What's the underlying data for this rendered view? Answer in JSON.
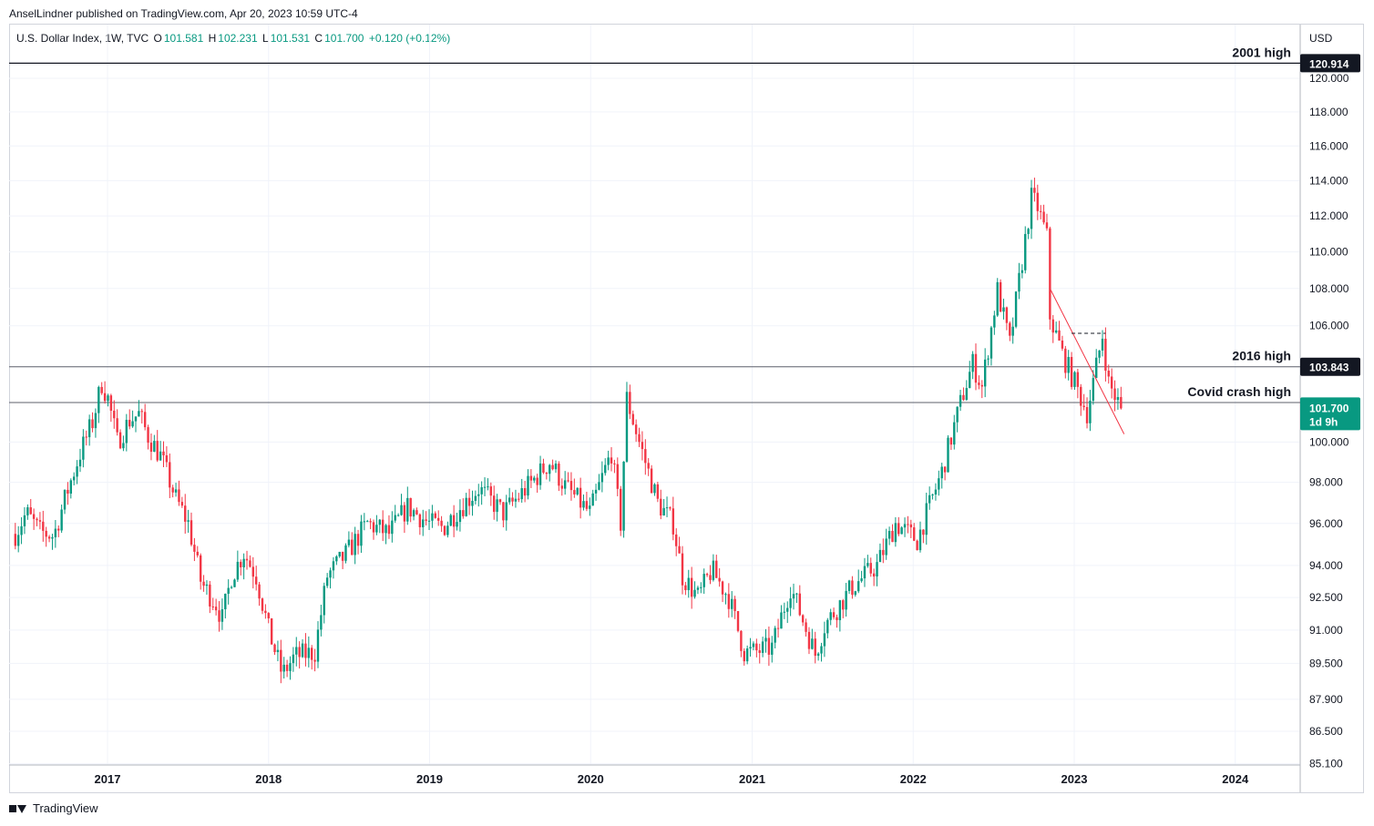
{
  "header": {
    "published": "AnselLindner published on TradingView.com, Apr 20, 2023 10:59 UTC-4"
  },
  "legend": {
    "symbol": "U.S. Dollar Index, 1W, TVC",
    "o_label": "O",
    "o_value": "101.581",
    "h_label": "H",
    "h_value": "102.231",
    "l_label": "L",
    "l_value": "101.531",
    "c_label": "C",
    "c_value": "101.700",
    "change": "+0.120 (+0.12%)"
  },
  "footer": {
    "brand": "TradingView"
  },
  "colors": {
    "up": "#089981",
    "down": "#f23645",
    "trend": "#f23645"
  },
  "chart_data": {
    "type": "candlestick",
    "currency": "USD",
    "scale": "log",
    "y_ticks": [
      "120.000",
      "118.000",
      "116.000",
      "114.000",
      "112.000",
      "110.000",
      "108.000",
      "106.000",
      "100.000",
      "98.000",
      "96.000",
      "94.000",
      "92.500",
      "91.000",
      "89.500",
      "87.900",
      "86.500",
      "85.100"
    ],
    "y_tick_values": [
      120,
      118,
      116,
      114,
      112,
      110,
      108,
      106,
      100,
      98,
      96,
      94,
      92.5,
      91,
      89.5,
      87.9,
      86.5,
      85.1
    ],
    "x_ticks": [
      "2017",
      "2018",
      "2019",
      "2020",
      "2021",
      "2022",
      "2023",
      "2024"
    ],
    "hlines": [
      {
        "label": "2001 high",
        "value": 120.914,
        "tag": "120.914"
      },
      {
        "label": "2016 high",
        "value": 103.843,
        "tag": "103.843"
      },
      {
        "label": "Covid crash high",
        "value": 102.0
      }
    ],
    "last_price": {
      "value": 101.7,
      "tag": "101.700",
      "countdown": "1d 9h"
    },
    "trendline": {
      "from": [
        "2022-11-07",
        108.0
      ],
      "to": [
        "2023-04-24",
        100.4
      ]
    },
    "dashed_level": {
      "from": [
        "2022-12-26",
        105.6
      ],
      "to": [
        "2023-03-13",
        105.6
      ]
    },
    "series_weekly_close": {
      "start": "2016-06-06",
      "points": [
        [
          "2016-06-06",
          95.5
        ],
        [
          "2016-07-01",
          96.5
        ],
        [
          "2016-08-01",
          95.6
        ],
        [
          "2016-09-01",
          95.4
        ],
        [
          "2016-10-01",
          97.5
        ],
        [
          "2016-11-01",
          99.5
        ],
        [
          "2016-11-28",
          101.0
        ],
        [
          "2016-12-19",
          103.0
        ],
        [
          "2017-01-02",
          102.2
        ],
        [
          "2017-01-23",
          100.0
        ],
        [
          "2017-02-20",
          101.1
        ],
        [
          "2017-03-13",
          101.4
        ],
        [
          "2017-04-03",
          100.3
        ],
        [
          "2017-05-01",
          99.3
        ],
        [
          "2017-06-05",
          97.2
        ],
        [
          "2017-07-03",
          96.0
        ],
        [
          "2017-08-01",
          93.2
        ],
        [
          "2017-09-04",
          92.2
        ],
        [
          "2017-09-18",
          91.5
        ],
        [
          "2017-10-09",
          93.5
        ],
        [
          "2017-11-06",
          94.6
        ],
        [
          "2017-12-04",
          93.5
        ],
        [
          "2018-01-01",
          91.0
        ],
        [
          "2018-02-01",
          89.0
        ],
        [
          "2018-03-01",
          89.8
        ],
        [
          "2018-04-16",
          90.0
        ],
        [
          "2018-05-14",
          93.5
        ],
        [
          "2018-06-25",
          94.5
        ],
        [
          "2018-08-13",
          96.0
        ],
        [
          "2018-10-01",
          95.5
        ],
        [
          "2018-11-12",
          96.8
        ],
        [
          "2018-12-31",
          96.0
        ],
        [
          "2019-02-01",
          95.8
        ],
        [
          "2019-03-04",
          96.6
        ],
        [
          "2019-04-22",
          97.7
        ],
        [
          "2019-06-17",
          96.5
        ],
        [
          "2019-08-12",
          97.8
        ],
        [
          "2019-09-30",
          99.0
        ],
        [
          "2019-11-04",
          97.8
        ],
        [
          "2019-12-30",
          96.5
        ],
        [
          "2020-02-17",
          99.5
        ],
        [
          "2020-03-09",
          96.0
        ],
        [
          "2020-03-23",
          102.2
        ],
        [
          "2020-04-20",
          100.0
        ],
        [
          "2020-06-01",
          97.0
        ],
        [
          "2020-07-06",
          96.0
        ],
        [
          "2020-07-27",
          93.5
        ],
        [
          "2020-09-01",
          92.5
        ],
        [
          "2020-10-01",
          93.8
        ],
        [
          "2020-11-09",
          92.5
        ],
        [
          "2020-12-14",
          90.0
        ],
        [
          "2021-01-04",
          90.0
        ],
        [
          "2021-02-15",
          90.2
        ],
        [
          "2021-03-29",
          93.0
        ],
        [
          "2021-05-24",
          89.9
        ],
        [
          "2021-06-14",
          91.2
        ],
        [
          "2021-08-16",
          93.0
        ],
        [
          "2021-10-11",
          94.0
        ],
        [
          "2021-11-22",
          96.0
        ],
        [
          "2022-01-10",
          95.2
        ],
        [
          "2022-03-07",
          98.5
        ],
        [
          "2022-04-25",
          102.5
        ],
        [
          "2022-05-16",
          104.0
        ],
        [
          "2022-06-06",
          102.8
        ],
        [
          "2022-07-11",
          107.9
        ],
        [
          "2022-08-08",
          105.0
        ],
        [
          "2022-09-05",
          109.5
        ],
        [
          "2022-09-26",
          113.0
        ],
        [
          "2022-10-10",
          112.5
        ],
        [
          "2022-10-31",
          110.8
        ],
        [
          "2022-11-07",
          106.5
        ],
        [
          "2022-12-05",
          104.5
        ],
        [
          "2023-01-02",
          103.0
        ],
        [
          "2023-01-30",
          101.5
        ],
        [
          "2023-02-13",
          103.0
        ],
        [
          "2023-03-06",
          105.5
        ],
        [
          "2023-03-20",
          103.0
        ],
        [
          "2023-04-17",
          101.7
        ]
      ]
    }
  }
}
